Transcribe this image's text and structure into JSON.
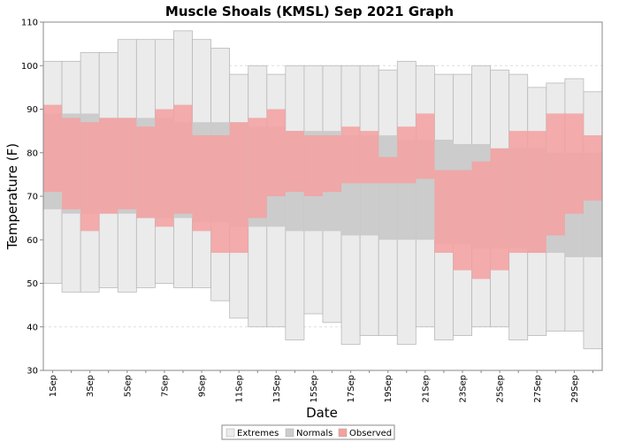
{
  "chart_data": {
    "type": "bar",
    "title": "Muscle Shoals (KMSL) Sep 2021 Graph",
    "xlabel": "Date",
    "ylabel": "Temperature (F)",
    "ylim": [
      30,
      110
    ],
    "yticks": [
      30,
      40,
      50,
      60,
      70,
      80,
      90,
      100,
      110
    ],
    "grid": true,
    "legend_position": "bottom-center",
    "days": [
      1,
      2,
      3,
      4,
      5,
      6,
      7,
      8,
      9,
      10,
      11,
      12,
      13,
      14,
      15,
      16,
      17,
      18,
      19,
      20,
      21,
      22,
      23,
      24,
      25,
      26,
      27,
      28,
      29,
      30
    ],
    "x_tick_labels": [
      "1Sep",
      "3Sep",
      "5Sep",
      "7Sep",
      "9Sep",
      "11Sep",
      "13Sep",
      "15Sep",
      "17Sep",
      "19Sep",
      "21Sep",
      "23Sep",
      "25Sep",
      "27Sep",
      "29Sep"
    ],
    "x_tick_days": [
      1,
      3,
      5,
      7,
      9,
      11,
      13,
      15,
      17,
      19,
      21,
      23,
      25,
      27,
      29
    ],
    "series": [
      {
        "name": "Extremes",
        "color": "#ebebeb",
        "low": [
          50,
          48,
          48,
          49,
          48,
          49,
          50,
          49,
          49,
          46,
          42,
          40,
          40,
          37,
          43,
          41,
          36,
          38,
          38,
          36,
          40,
          37,
          38,
          40,
          40,
          37,
          38,
          39,
          39,
          35
        ],
        "high": [
          101,
          101,
          103,
          103,
          106,
          106,
          106,
          108,
          106,
          104,
          98,
          100,
          98,
          100,
          100,
          100,
          100,
          100,
          99,
          101,
          100,
          98,
          98,
          100,
          99,
          98,
          95,
          96,
          97,
          94
        ]
      },
      {
        "name": "Normals",
        "color": "#cccccc",
        "low": [
          67,
          66,
          66,
          66,
          66,
          65,
          65,
          65,
          64,
          64,
          63,
          63,
          63,
          62,
          62,
          62,
          61,
          61,
          60,
          60,
          60,
          59,
          59,
          58,
          58,
          58,
          57,
          57,
          56,
          56
        ],
        "high": [
          89,
          89,
          89,
          88,
          88,
          88,
          88,
          87,
          87,
          87,
          87,
          86,
          86,
          85,
          85,
          85,
          84,
          84,
          84,
          83,
          83,
          83,
          82,
          82,
          81,
          81,
          81,
          80,
          80,
          80
        ]
      },
      {
        "name": "Observed",
        "color": "#f5a0a0",
        "low": [
          71,
          67,
          62,
          66,
          67,
          65,
          63,
          66,
          62,
          57,
          57,
          65,
          70,
          71,
          70,
          71,
          73,
          73,
          73,
          73,
          74,
          57,
          53,
          51,
          53,
          57,
          57,
          61,
          66,
          69
        ],
        "high": [
          91,
          88,
          87,
          88,
          88,
          86,
          90,
          91,
          84,
          84,
          87,
          88,
          90,
          85,
          84,
          84,
          86,
          85,
          79,
          86,
          89,
          76,
          76,
          78,
          81,
          85,
          85,
          89,
          89,
          84
        ]
      }
    ]
  }
}
